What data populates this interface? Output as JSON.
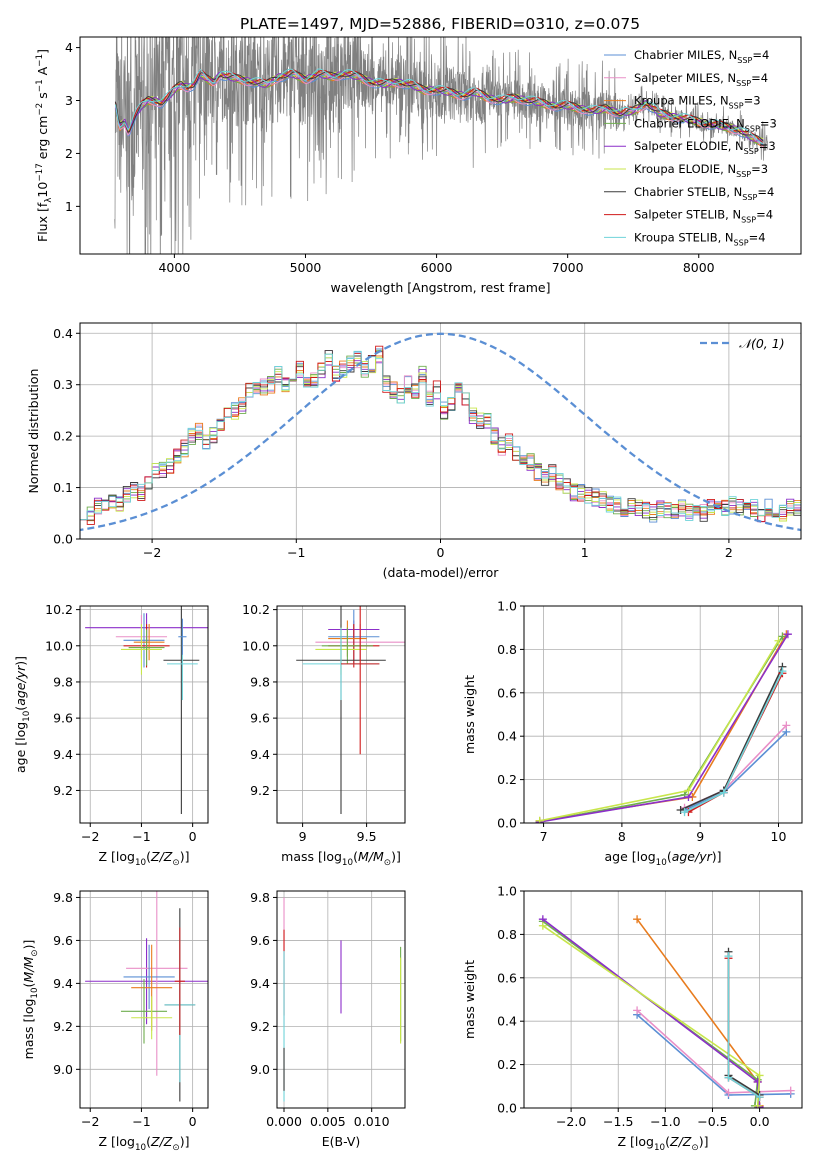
{
  "title": "PLATE=1497, MJD=52886, FIBERID=0310, z=0.075",
  "series_names": [
    {
      "base": "Chabrier MILES, N",
      "sub": "SSP",
      "tail": "=4",
      "color": "#5b8fd4"
    },
    {
      "base": "Salpeter MILES, N",
      "sub": "SSP",
      "tail": "=4",
      "color": "#e98fc7"
    },
    {
      "base": "Kroupa MILES, N",
      "sub": "SSP",
      "tail": "=3",
      "color": "#e87c1e"
    },
    {
      "base": "Chabrier ELODIE, N",
      "sub": "SSP",
      "tail": "=3",
      "color": "#6fae4f"
    },
    {
      "base": "Salpeter ELODIE, N",
      "sub": "SSP",
      "tail": "=3",
      "color": "#8b2fc9"
    },
    {
      "base": "Kroupa ELODIE, N",
      "sub": "SSP",
      "tail": "=3",
      "color": "#c8e64b"
    },
    {
      "base": "Chabrier STELIB, N",
      "sub": "SSP",
      "tail": "=4",
      "color": "#3c3c3c"
    },
    {
      "base": "Salpeter STELIB, N",
      "sub": "SSP",
      "tail": "=4",
      "color": "#d01a1a"
    },
    {
      "base": "Kroupa STELIB, N",
      "sub": "SSP",
      "tail": "=4",
      "color": "#6fd3d9"
    }
  ],
  "chart_data": [
    {
      "id": "spectrum",
      "type": "line",
      "xlabel": "wavelength [Angstrom, rest frame]",
      "ylabel": {
        "pre": "Flux [f",
        "sub": "λ",
        "mid": "10",
        "sup1": "−17",
        "post": " erg cm",
        "sup2": "−2",
        "post2": " s",
        "sup3": "−1",
        "post3": " A",
        "sup4": "−1",
        "end": "]"
      },
      "xlim": [
        3280,
        8780
      ],
      "ylim": [
        0.1,
        4.2
      ],
      "xticks": [
        4000,
        5000,
        6000,
        7000,
        8000
      ],
      "yticks": [
        1,
        2,
        3,
        4
      ],
      "data_color": "#808080",
      "model_profile": {
        "x": [
          3550,
          3580,
          3620,
          3650,
          3700,
          3750,
          3800,
          3850,
          3900,
          3950,
          4000,
          4050,
          4100,
          4150,
          4200,
          4250,
          4300,
          4350,
          4400,
          4500,
          4600,
          4700,
          4800,
          4900,
          5000,
          5100,
          5200,
          5300,
          5400,
          5500,
          5600,
          5700,
          5800,
          5900,
          6000,
          6100,
          6200,
          6300,
          6400,
          6500,
          6600,
          6700,
          6800,
          6900,
          7000,
          7100,
          7200,
          7300,
          7400,
          7500,
          7600,
          7700,
          7800,
          7900,
          8000,
          8100,
          8200,
          8300,
          8400,
          8500
        ],
        "y": [
          2.9,
          2.5,
          2.6,
          2.4,
          2.7,
          2.9,
          3.0,
          3.0,
          2.95,
          3.05,
          3.2,
          3.3,
          3.25,
          3.3,
          3.5,
          3.4,
          3.35,
          3.5,
          3.45,
          3.4,
          3.35,
          3.3,
          3.45,
          3.5,
          3.4,
          3.5,
          3.45,
          3.5,
          3.45,
          3.35,
          3.3,
          3.35,
          3.3,
          3.2,
          3.2,
          3.15,
          3.1,
          3.15,
          3.05,
          3.0,
          3.05,
          3.0,
          2.95,
          2.9,
          2.9,
          2.85,
          2.8,
          2.85,
          2.75,
          2.8,
          2.95,
          2.75,
          2.7,
          2.65,
          2.6,
          2.55,
          2.5,
          2.45,
          2.3,
          2.2
        ]
      }
    },
    {
      "id": "residuals",
      "type": "bar",
      "xlabel": "(data-model)/error",
      "ylabel": "Normed distribution",
      "xlim": [
        -2.5,
        2.5
      ],
      "ylim": [
        0,
        0.42
      ],
      "xticks": [
        -2,
        -1,
        0,
        1,
        2
      ],
      "yticks": [
        0.0,
        0.1,
        0.2,
        0.3,
        0.4
      ],
      "normal_label": "𝒩(0, 1)",
      "normal_color": "#5b8fd4",
      "bin_width": 0.1,
      "bin_start": -2.5,
      "base_hist": [
        0.055,
        0.045,
        0.062,
        0.06,
        0.068,
        0.07,
        0.085,
        0.095,
        0.09,
        0.11,
        0.13,
        0.135,
        0.145,
        0.16,
        0.175,
        0.2,
        0.21,
        0.19,
        0.2,
        0.22,
        0.24,
        0.25,
        0.26,
        0.29,
        0.3,
        0.295,
        0.3,
        0.32,
        0.3,
        0.32,
        0.33,
        0.3,
        0.31,
        0.33,
        0.35,
        0.32,
        0.33,
        0.34,
        0.35,
        0.33,
        0.34,
        0.36,
        0.3,
        0.29,
        0.28,
        0.3,
        0.29,
        0.32,
        0.27,
        0.29,
        0.25,
        0.26,
        0.3,
        0.27,
        0.24,
        0.23,
        0.23,
        0.2,
        0.18,
        0.19,
        0.17,
        0.16,
        0.15,
        0.13,
        0.12,
        0.13,
        0.11,
        0.1,
        0.09,
        0.09,
        0.085,
        0.08,
        0.075,
        0.07,
        0.065,
        0.06,
        0.065,
        0.06,
        0.055,
        0.05,
        0.058,
        0.055,
        0.05,
        0.06,
        0.052,
        0.058,
        0.05,
        0.06,
        0.055,
        0.06,
        0.065,
        0.06,
        0.055,
        0.06,
        0.05,
        0.06,
        0.055,
        0.05,
        0.06,
        0.058
      ]
    },
    {
      "id": "z-age",
      "type": "scatter",
      "xlabel": {
        "pre": "Z [log",
        "sub": "10",
        "mid": "(",
        "it": "Z/Z",
        "sub2": "⊙",
        "end": ")]"
      },
      "ylabel": {
        "pre": "age  [log",
        "sub": "10",
        "mid": "(",
        "it": "age/yr",
        "end": ")]"
      },
      "xlim": [
        -2.2,
        0.3
      ],
      "ylim": [
        9.02,
        10.22
      ],
      "xticks": [
        -2,
        -1,
        0
      ],
      "yticks": [
        9.2,
        9.4,
        9.6,
        9.8,
        10.0,
        10.2
      ],
      "errorbars": [
        {
          "x": -0.9,
          "y": 10.1,
          "xerr": 1.2,
          "yerr": 0.08,
          "s": 4
        },
        {
          "x": -1.0,
          "y": 10.05,
          "xerr": 0.5,
          "yerr": 0.12,
          "s": 1
        },
        {
          "x": -0.95,
          "y": 10.03,
          "xerr": 0.4,
          "yerr": 0.15,
          "s": 0
        },
        {
          "x": -0.9,
          "y": 10.0,
          "xerr": 0.45,
          "yerr": 0.12,
          "s": 7
        },
        {
          "x": -0.85,
          "y": 10.02,
          "xerr": 0.3,
          "yerr": 0.1,
          "s": 2
        },
        {
          "x": -1.0,
          "y": 9.98,
          "xerr": 0.4,
          "yerr": 0.14,
          "s": 5
        },
        {
          "x": -0.9,
          "y": 9.99,
          "xerr": 0.35,
          "yerr": 0.1,
          "s": 3
        },
        {
          "x": -0.22,
          "y": 9.92,
          "xerr": 0.35,
          "yerr": 0.85,
          "s": 6
        },
        {
          "x": -0.2,
          "y": 9.9,
          "xerr": 0.3,
          "yerr": 0.2,
          "s": 8
        },
        {
          "x": -0.2,
          "y": 10.05,
          "xerr": 0.08,
          "yerr": 0.1,
          "s": 0
        }
      ]
    },
    {
      "id": "mass-age",
      "type": "scatter",
      "xlabel": {
        "pre": "mass [log",
        "sub": "10",
        "mid": "(",
        "it": "M/M",
        "sub2": "⊙",
        "end": ")]"
      },
      "ylabel": "",
      "xlim": [
        8.8,
        9.8
      ],
      "ylim": [
        9.02,
        10.22
      ],
      "xticks": [
        9.0,
        9.5
      ],
      "yticks": [
        9.2,
        9.4,
        9.6,
        9.8,
        10.0,
        10.2
      ],
      "errorbars": [
        {
          "x": 9.4,
          "y": 10.09,
          "xerr": 0.2,
          "yerr": 0.05,
          "s": 4
        },
        {
          "x": 9.45,
          "y": 10.02,
          "xerr": 0.35,
          "yerr": 0.1,
          "s": 1
        },
        {
          "x": 9.4,
          "y": 10.05,
          "xerr": 0.2,
          "yerr": 0.15,
          "s": 0
        },
        {
          "x": 9.4,
          "y": 10.0,
          "xerr": 0.2,
          "yerr": 0.12,
          "s": 7
        },
        {
          "x": 9.35,
          "y": 10.04,
          "xerr": 0.15,
          "yerr": 0.1,
          "s": 2
        },
        {
          "x": 9.3,
          "y": 9.98,
          "xerr": 0.2,
          "yerr": 0.14,
          "s": 5
        },
        {
          "x": 9.35,
          "y": 10.0,
          "xerr": 0.2,
          "yerr": 0.1,
          "s": 3
        },
        {
          "x": 9.3,
          "y": 9.92,
          "xerr": 0.35,
          "yerr": 0.85,
          "s": 6
        },
        {
          "x": 9.3,
          "y": 9.9,
          "xerr": 0.3,
          "yerr": 0.2,
          "s": 8
        },
        {
          "x": 9.45,
          "y": 9.9,
          "xerr": 0.15,
          "yerr": 0.5,
          "s": 7
        }
      ]
    },
    {
      "id": "age-weight",
      "type": "line",
      "xlabel": {
        "pre": "age  [log",
        "sub": "10",
        "mid": "(",
        "it": "age/yr",
        "end": ")]"
      },
      "ylabel": "mass weight",
      "xlim": [
        6.75,
        10.3
      ],
      "ylim": [
        0,
        1.0
      ],
      "xticks": [
        7,
        8,
        9,
        10
      ],
      "yticks": [
        0.0,
        0.2,
        0.4,
        0.6,
        0.8,
        1.0
      ],
      "lines": [
        {
          "s": 0,
          "x": [
            8.8,
            9.3,
            10.1
          ],
          "y": [
            0.06,
            0.14,
            0.42
          ]
        },
        {
          "s": 1,
          "x": [
            8.8,
            9.3,
            10.1
          ],
          "y": [
            0.07,
            0.15,
            0.45
          ]
        },
        {
          "s": 2,
          "x": [
            6.95,
            8.9,
            10.1
          ],
          "y": [
            0.01,
            0.12,
            0.87
          ]
        },
        {
          "s": 3,
          "x": [
            6.95,
            8.8,
            10.05
          ],
          "y": [
            0.005,
            0.13,
            0.86
          ]
        },
        {
          "s": 4,
          "x": [
            6.95,
            8.85,
            10.12
          ],
          "y": [
            0.005,
            0.12,
            0.87
          ]
        },
        {
          "s": 5,
          "x": [
            6.95,
            8.85,
            10.0
          ],
          "y": [
            0.01,
            0.15,
            0.84
          ]
        },
        {
          "s": 6,
          "x": [
            8.75,
            9.3,
            10.05
          ],
          "y": [
            0.06,
            0.15,
            0.72
          ]
        },
        {
          "s": 7,
          "x": [
            8.85,
            9.3,
            10.05
          ],
          "y": [
            0.05,
            0.14,
            0.69
          ]
        },
        {
          "s": 8,
          "x": [
            8.8,
            9.3,
            10.05
          ],
          "y": [
            0.05,
            0.14,
            0.7
          ]
        }
      ]
    },
    {
      "id": "z-mass",
      "type": "scatter",
      "xlabel": {
        "pre": "Z [log",
        "sub": "10",
        "mid": "(",
        "it": "Z/Z",
        "sub2": "⊙",
        "end": ")]"
      },
      "ylabel": {
        "pre": "mass [log",
        "sub": "10",
        "mid": "(",
        "it": "M/M",
        "sub2": "⊙",
        "end": ")]"
      },
      "xlim": [
        -2.2,
        0.3
      ],
      "ylim": [
        8.82,
        9.83
      ],
      "xticks": [
        -2,
        -1,
        0
      ],
      "yticks": [
        9.0,
        9.2,
        9.4,
        9.6,
        9.8
      ],
      "errorbars": [
        {
          "x": -0.9,
          "y": 9.41,
          "xerr": 1.2,
          "yerr": 0.2,
          "s": 4
        },
        {
          "x": -0.7,
          "y": 9.47,
          "xerr": 0.6,
          "yerr": 0.5,
          "s": 1
        },
        {
          "x": -0.85,
          "y": 9.43,
          "xerr": 0.5,
          "yerr": 0.15,
          "s": 0
        },
        {
          "x": -0.8,
          "y": 9.38,
          "xerr": 0.4,
          "yerr": 0.2,
          "s": 2
        },
        {
          "x": -0.95,
          "y": 9.27,
          "xerr": 0.45,
          "yerr": 0.15,
          "s": 3
        },
        {
          "x": -0.8,
          "y": 9.24,
          "xerr": 0.4,
          "yerr": 0.1,
          "s": 5
        },
        {
          "x": -0.25,
          "y": 9.3,
          "xerr": 0.3,
          "yerr": 0.45,
          "s": 6
        },
        {
          "x": -0.25,
          "y": 9.3,
          "xerr": 0.3,
          "yerr": 0.36,
          "s": 8
        },
        {
          "x": -0.25,
          "y": 9.41,
          "xerr": 0.1,
          "yerr": 0.25,
          "s": 7
        }
      ]
    },
    {
      "id": "ebv-mass",
      "type": "scatter",
      "xlabel": "E(B-V)",
      "ylabel": "",
      "xlim": [
        -0.0008,
        0.0138
      ],
      "ylim": [
        8.82,
        9.83
      ],
      "xticks": [
        0.0,
        0.005,
        0.01
      ],
      "xticklabels": [
        "0.000",
        "0.005",
        "0.010"
      ],
      "yticks": [
        9.0,
        9.2,
        9.4,
        9.6,
        9.8
      ],
      "errorbars": [
        {
          "x": 0.0,
          "y": 9.5,
          "xerr": 0,
          "yerr": 0.3,
          "s": 1
        },
        {
          "x": 0.0,
          "y": 9.45,
          "xerr": 0,
          "yerr": 0.2,
          "s": 7
        },
        {
          "x": 0.0,
          "y": 9.2,
          "xerr": 0,
          "yerr": 0.35,
          "s": 8
        },
        {
          "x": 0.0,
          "y": 9.0,
          "xerr": 0,
          "yerr": 0.1,
          "s": 6
        },
        {
          "x": 0.0065,
          "y": 9.43,
          "xerr": 0,
          "yerr": 0.17,
          "s": 4
        },
        {
          "x": 0.0133,
          "y": 9.35,
          "xerr": 0,
          "yerr": 0.22,
          "s": 3
        },
        {
          "x": 0.0133,
          "y": 9.32,
          "xerr": 0,
          "yerr": 0.2,
          "s": 5
        }
      ]
    },
    {
      "id": "z-weight",
      "type": "line",
      "xlabel": {
        "pre": "Z [log",
        "sub": "10",
        "mid": "(",
        "it": "Z/Z",
        "sub2": "⊙",
        "end": ")]"
      },
      "ylabel": "mass weight",
      "xlim": [
        -2.5,
        0.45
      ],
      "ylim": [
        0,
        1.0
      ],
      "xticks": [
        -2.0,
        -1.5,
        -1.0,
        -0.5,
        0.0
      ],
      "xticklabels": [
        "−2.0",
        "−1.5",
        "−1.0",
        "−0.5",
        "0.0"
      ],
      "yticks": [
        0.0,
        0.2,
        0.4,
        0.6,
        0.8,
        1.0
      ],
      "lines": [
        {
          "s": 0,
          "x": [
            -1.3,
            -0.33,
            0.33
          ],
          "y": [
            0.43,
            0.06,
            0.065
          ]
        },
        {
          "s": 1,
          "x": [
            -1.3,
            -0.33,
            0.33
          ],
          "y": [
            0.45,
            0.07,
            0.08
          ]
        },
        {
          "s": 2,
          "x": [
            -1.3,
            -0.02,
            0.0
          ],
          "y": [
            0.87,
            0.12,
            0.01
          ]
        },
        {
          "s": 3,
          "x": [
            -2.3,
            -0.02,
            -0.05
          ],
          "y": [
            0.86,
            0.13,
            0.01
          ]
        },
        {
          "s": 4,
          "x": [
            -2.3,
            -0.02,
            0.0
          ],
          "y": [
            0.87,
            0.12,
            0.005
          ]
        },
        {
          "s": 5,
          "x": [
            -2.3,
            0.0,
            -0.02
          ],
          "y": [
            0.84,
            0.15,
            0.01
          ]
        },
        {
          "s": 6,
          "x": [
            -0.33,
            -0.33,
            0.0
          ],
          "y": [
            0.72,
            0.15,
            0.06
          ]
        },
        {
          "s": 7,
          "x": [
            -0.33,
            -0.33,
            0.0
          ],
          "y": [
            0.69,
            0.14,
            0.05
          ]
        },
        {
          "s": 8,
          "x": [
            -0.33,
            -0.33,
            0.0
          ],
          "y": [
            0.7,
            0.14,
            0.05
          ]
        }
      ]
    }
  ]
}
